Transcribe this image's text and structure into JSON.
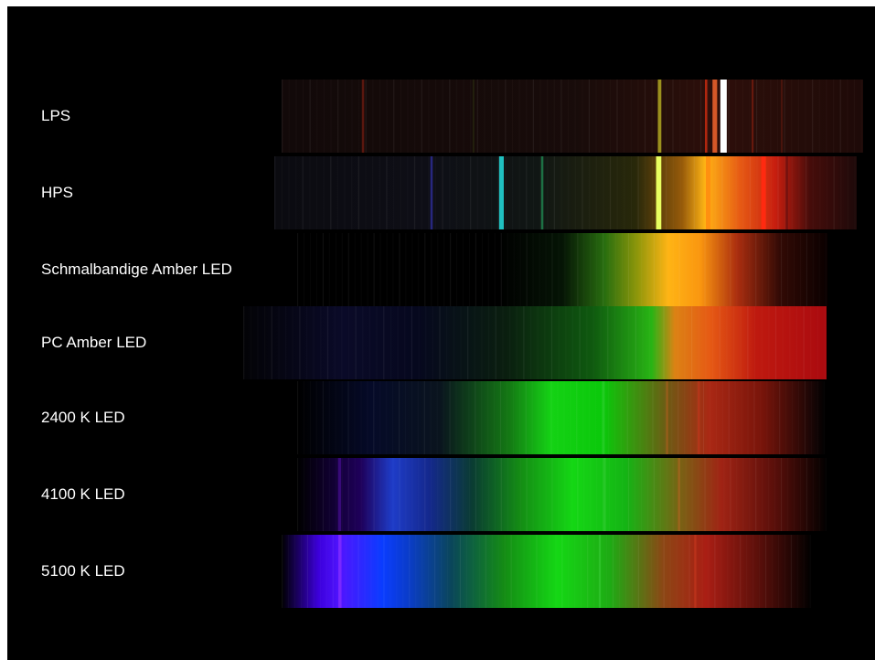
{
  "spectra": [
    {
      "key": "lps",
      "label": "LPS",
      "base": "linear-gradient(90deg, rgba(20,10,10,0.9) 0%, rgba(25,12,10,0.95) 50%, rgba(45,15,10,1) 75%, rgba(30,10,8,1) 100%)",
      "lines": [
        {
          "at": 0.14,
          "w": 0.004,
          "color": "#6b1a10",
          "o": 0.8
        },
        {
          "at": 0.33,
          "w": 0.003,
          "color": "#2a2a10",
          "o": 0.7
        },
        {
          "at": 0.65,
          "w": 0.006,
          "color": "#a8a020",
          "o": 0.9
        },
        {
          "at": 0.73,
          "w": 0.004,
          "color": "#c02a10",
          "o": 0.9
        },
        {
          "at": 0.76,
          "w": 0.011,
          "color": "#ffffff",
          "o": 1.0
        },
        {
          "at": 0.745,
          "w": 0.008,
          "color": "#ff6a30",
          "o": 0.8
        },
        {
          "at": 0.81,
          "w": 0.003,
          "color": "#8a2010",
          "o": 0.7
        },
        {
          "at": 0.86,
          "w": 0.003,
          "color": "#5a1810",
          "o": 0.7
        }
      ]
    },
    {
      "key": "hps",
      "label": "HPS",
      "base": "linear-gradient(90deg, rgba(12,12,18,0.9) 0%, rgba(14,14,22,1) 25%, rgba(16,22,20,1) 45%, rgba(40,40,10,1) 62%, rgba(150,90,10,1) 70%, rgba(255,180,20,1) 74%, rgba(230,90,20,1) 80%, rgba(200,30,15,1) 86%, rgba(70,12,10,1) 92%, rgba(30,10,10,1) 100%)",
      "lines": [
        {
          "at": 0.27,
          "w": 0.004,
          "color": "#2a2a8a",
          "o": 0.9
        },
        {
          "at": 0.39,
          "w": 0.008,
          "color": "#20c0c0",
          "o": 1.0
        },
        {
          "at": 0.46,
          "w": 0.004,
          "color": "#1f7a4a",
          "o": 0.9
        },
        {
          "at": 0.66,
          "w": 0.009,
          "color": "#e8ff60",
          "o": 1.0
        },
        {
          "at": 0.745,
          "w": 0.008,
          "color": "#ff9010",
          "o": 1.0
        },
        {
          "at": 0.84,
          "w": 0.008,
          "color": "#ff2a10",
          "o": 1.0
        },
        {
          "at": 0.88,
          "w": 0.004,
          "color": "#6a1010",
          "o": 0.8
        }
      ]
    },
    {
      "key": "narrow-amber",
      "label": "Schmalbandige Amber LED",
      "base": "linear-gradient(90deg, rgba(0,0,0,1) 0%, rgba(0,0,0,1) 38%, rgba(5,20,5,1) 50%, rgba(40,110,15,1) 58%, rgba(140,150,10,1) 64%, rgba(255,180,20,1) 70%, rgba(250,150,15,1) 76%, rgba(170,45,15,1) 83%, rgba(50,10,5,1) 91%, rgba(10,0,0,1) 100%)",
      "lines": []
    },
    {
      "key": "pc-amber",
      "label": "PC Amber LED",
      "base": "linear-gradient(90deg, rgba(3,3,6,1) 0%, rgba(10,10,40,1) 17%, rgba(6,8,30,1) 30%, rgba(10,30,15,1) 45%, rgba(15,90,15,1) 60%, rgba(40,180,20,1) 70%, rgba(220,130,20,1) 74%, rgba(230,90,20,1) 80%, rgba(190,25,15,1) 88%, rgba(170,10,15,1) 100%)",
      "lines": []
    },
    {
      "key": "led-2400",
      "label": "2400 K LED",
      "base": "linear-gradient(90deg, rgba(0,0,0,1) 0%, rgba(5,10,40,1) 14%, rgba(10,20,30,1) 27%, rgba(20,120,20,1) 40%, rgba(20,210,20,1) 48%, rgba(10,200,10,1) 58%, rgba(110,90,20,1) 70%, rgba(170,40,20,1) 78%, rgba(120,20,10,1) 88%, rgba(20,5,5,1) 98%, rgba(0,0,0,1) 100%)",
      "lines": [
        {
          "at": 0.58,
          "w": 0.004,
          "color": "#3bd03b",
          "o": 0.5
        },
        {
          "at": 0.7,
          "w": 0.004,
          "color": "#c06020",
          "o": 0.5
        },
        {
          "at": 0.76,
          "w": 0.004,
          "color": "#d03a20",
          "o": 0.5
        }
      ]
    },
    {
      "key": "led-4100",
      "label": "4100 K LED",
      "base": "linear-gradient(90deg, rgba(0,0,0,1) 0%, rgba(30,0,90,1) 12%, rgba(30,60,200,1) 18%, rgba(20,40,140,1) 25%, rgba(10,60,50,1) 33%, rgba(20,140,20,1) 42%, rgba(20,215,20,1) 52%, rgba(20,180,20,1) 62%, rgba(120,100,20,1) 72%, rgba(160,35,20,1) 80%, rgba(90,15,10,1) 90%, rgba(0,0,0,1) 100%)",
      "lines": [
        {
          "at": 0.08,
          "w": 0.006,
          "color": "#5010a0",
          "o": 0.6
        },
        {
          "at": 0.58,
          "w": 0.004,
          "color": "#3bd03b",
          "o": 0.5
        },
        {
          "at": 0.72,
          "w": 0.004,
          "color": "#c06020",
          "o": 0.5
        }
      ]
    },
    {
      "key": "led-5100",
      "label": "5100 K LED",
      "base": "linear-gradient(90deg, rgba(0,0,0,1) 0%, rgba(60,0,220,1) 7%, rgba(80,20,255,1) 11%, rgba(10,60,255,1) 19%, rgba(10,60,200,1) 24%, rgba(10,70,90,1) 32%, rgba(20,140,20,1) 42%, rgba(20,215,20,1) 52%, rgba(30,170,20,1) 62%, rgba(140,70,20,1) 72%, rgba(170,30,20,1) 80%, rgba(90,15,10,1) 90%, rgba(0,0,0,1) 100%)",
      "lines": [
        {
          "at": 0.11,
          "w": 0.006,
          "color": "#8c30ff",
          "o": 0.7
        },
        {
          "at": 0.6,
          "w": 0.004,
          "color": "#3bd03b",
          "o": 0.5
        },
        {
          "at": 0.78,
          "w": 0.004,
          "color": "#d03a20",
          "o": 0.5
        }
      ]
    }
  ]
}
